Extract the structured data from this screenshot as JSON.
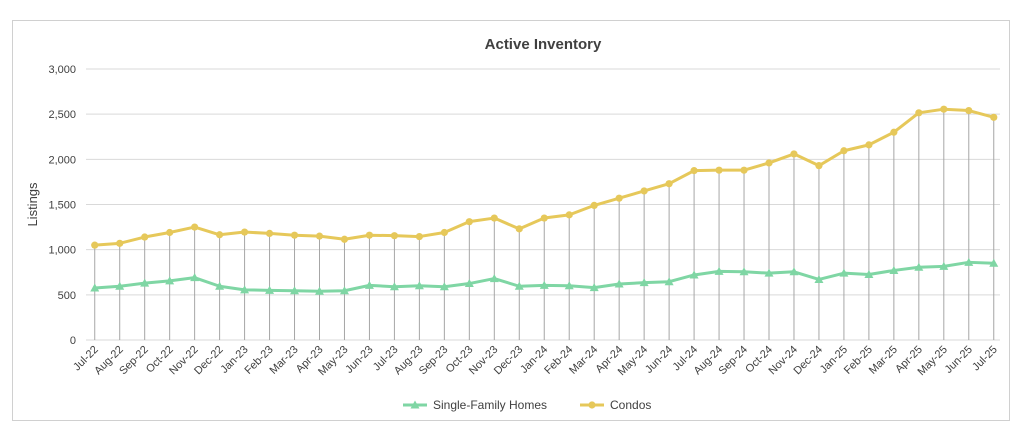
{
  "chart_data": {
    "type": "line",
    "title": "Active Inventory",
    "xlabel": "",
    "ylabel": "Listings",
    "ylim": [
      0,
      3000
    ],
    "yticks": [
      0,
      500,
      1000,
      1500,
      2000,
      2500,
      3000
    ],
    "ytick_labels": [
      "0",
      "500",
      "1,000",
      "1,500",
      "2,000",
      "2,500",
      "3,000"
    ],
    "grid": "horizontal",
    "drop_lines": true,
    "legend_position": "bottom",
    "categories": [
      "Jul-22",
      "Aug-22",
      "Sep-22",
      "Oct-22",
      "Nov-22",
      "Dec-22",
      "Jan-23",
      "Feb-23",
      "Mar-23",
      "Apr-23",
      "May-23",
      "Jun-23",
      "Jul-23",
      "Aug-23",
      "Sep-23",
      "Oct-23",
      "Nov-23",
      "Dec-23",
      "Jan-24",
      "Feb-24",
      "Mar-24",
      "Apr-24",
      "May-24",
      "Jun-24",
      "Jul-24",
      "Aug-24",
      "Sep-24",
      "Oct-24",
      "Nov-24",
      "Dec-24",
      "Jan-25",
      "Feb-25",
      "Mar-25",
      "Apr-25",
      "May-25",
      "Jun-25",
      "Jul-25"
    ],
    "series": [
      {
        "name": "Single-Family Homes",
        "color": "#7fd6a4",
        "marker": "triangle",
        "values": [
          575,
          595,
          630,
          655,
          690,
          595,
          555,
          550,
          545,
          540,
          545,
          605,
          590,
          600,
          590,
          625,
          680,
          595,
          605,
          600,
          580,
          620,
          635,
          645,
          720,
          760,
          755,
          740,
          755,
          670,
          740,
          725,
          770,
          805,
          815,
          860,
          850
        ]
      },
      {
        "name": "Condos",
        "color": "#e6c85a",
        "marker": "circle",
        "values": [
          1050,
          1070,
          1140,
          1190,
          1250,
          1165,
          1195,
          1180,
          1160,
          1150,
          1115,
          1160,
          1155,
          1145,
          1190,
          1310,
          1350,
          1230,
          1350,
          1385,
          1490,
          1570,
          1650,
          1730,
          1875,
          1880,
          1880,
          1960,
          2060,
          1930,
          2095,
          2160,
          2300,
          2515,
          2555,
          2540,
          2465
        ]
      }
    ]
  }
}
